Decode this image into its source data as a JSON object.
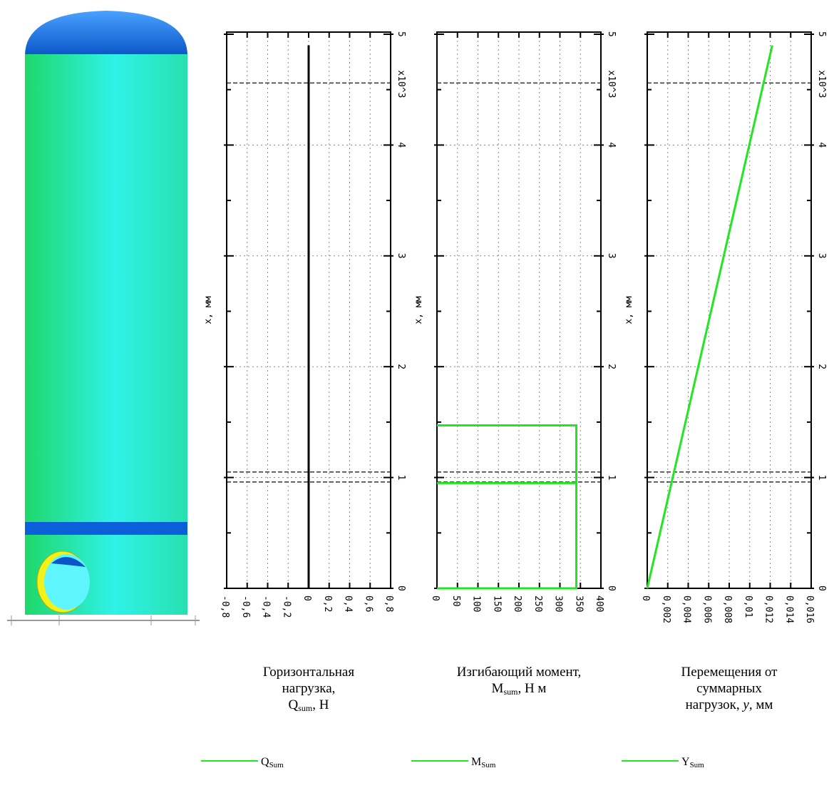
{
  "chart_data": [
    {
      "type": "line",
      "x_label": "x, мм",
      "x_scale_label": "x10^3",
      "xlim": [
        0,
        5
      ],
      "xticks": [
        0,
        1,
        2,
        3,
        4,
        5
      ],
      "xminor": [
        0.5,
        1.5,
        2.5,
        3.5,
        4.5
      ],
      "ylim": [
        -0.8,
        0.8
      ],
      "yticks": [
        {
          "value": -0.8,
          "label": "-0,8"
        },
        {
          "value": -0.6,
          "label": "-0,6"
        },
        {
          "value": -0.4,
          "label": "-0,4"
        },
        {
          "value": -0.2,
          "label": "-0,2"
        },
        0,
        {
          "value": 0.2,
          "label": "0,2"
        },
        {
          "value": 0.4,
          "label": "0,4"
        },
        {
          "value": 0.6,
          "label": "0,6"
        },
        {
          "value": 0.8,
          "label": "0,8"
        }
      ],
      "grid": true,
      "reference_lines": [
        4.56,
        1.05,
        0.96
      ],
      "series": [
        {
          "name": "Q",
          "name_sub": "Sum",
          "color": "#000000",
          "legend_color": "#22e622",
          "x": [
            0,
            4.9
          ],
          "values": [
            0,
            0
          ]
        }
      ],
      "title_lines": [
        [
          {
            "text": "Горизонтальная"
          }
        ],
        [
          {
            "text": "нагрузка,"
          }
        ],
        [
          {
            "text": "Q"
          },
          {
            "text": "sum",
            "style": "sub"
          },
          {
            "text": ", Н"
          }
        ]
      ]
    },
    {
      "type": "line",
      "x_label": "x, мм",
      "x_scale_label": "x10^3",
      "xlim": [
        0,
        5
      ],
      "xticks": [
        0,
        1,
        2,
        3,
        4,
        5
      ],
      "xminor": [
        0.5,
        1.5,
        2.5,
        3.5,
        4.5
      ],
      "ylim": [
        0,
        400
      ],
      "yticks": [
        0,
        50,
        100,
        150,
        200,
        250,
        300,
        350,
        400
      ],
      "grid": true,
      "reference_lines": [
        4.56,
        1.05,
        0.96
      ],
      "series": [
        {
          "name": "M",
          "name_sub": "Sum",
          "color": "#22e622",
          "legend_color": "#22e622",
          "x": [
            0,
            0,
            1.47,
            1.47,
            null,
            0.95,
            0.95
          ],
          "values": [
            0,
            340,
            340,
            0,
            null,
            0,
            340
          ]
        }
      ],
      "title_lines": [
        [
          {
            "text": "Изгибающий момент,"
          }
        ],
        [
          {
            "text": "M"
          },
          {
            "text": "sum",
            "style": "sub"
          },
          {
            "text": ", Н м"
          }
        ]
      ]
    },
    {
      "type": "line",
      "x_label": "x, мм",
      "x_scale_label": "x10^3",
      "xlim": [
        0,
        5
      ],
      "xticks": [
        0,
        1,
        2,
        3,
        4,
        5
      ],
      "xminor": [
        0.5,
        1.5,
        2.5,
        3.5,
        4.5
      ],
      "ylim": [
        0,
        0.016
      ],
      "yticks": [
        0,
        {
          "value": 0.002,
          "label": "0,002"
        },
        {
          "value": 0.004,
          "label": "0,004"
        },
        {
          "value": 0.006,
          "label": "0,006"
        },
        {
          "value": 0.008,
          "label": "0,008"
        },
        {
          "value": 0.01,
          "label": "0,01"
        },
        {
          "value": 0.012,
          "label": "0,012"
        },
        {
          "value": 0.014,
          "label": "0,014"
        },
        {
          "value": 0.016,
          "label": "0,016"
        }
      ],
      "grid": true,
      "reference_lines": [
        4.56,
        1.05,
        0.96
      ],
      "series": [
        {
          "name": "Y",
          "name_sub": "Sum",
          "color": "#22e622",
          "legend_color": "#22e622",
          "x": [
            0,
            4.9
          ],
          "values": [
            0,
            0.0122
          ]
        }
      ],
      "title_lines": [
        [
          {
            "text": "Перемещения от"
          }
        ],
        [
          {
            "text": "суммарных"
          }
        ],
        [
          {
            "text": "нагрузок, "
          },
          {
            "text": "y",
            "style": "italic"
          },
          {
            "text": ", мм"
          }
        ]
      ]
    }
  ]
}
